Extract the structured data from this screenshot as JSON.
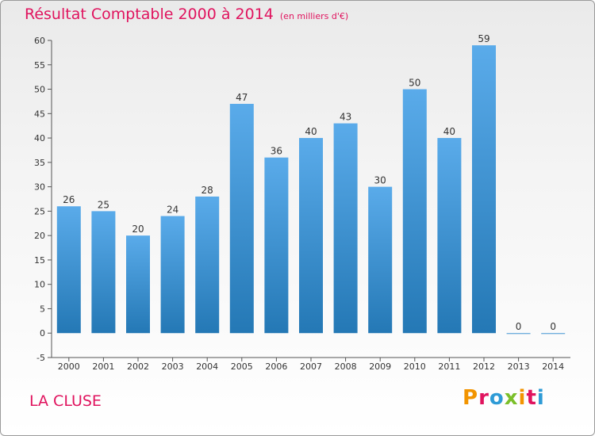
{
  "header": {
    "title": "Résultat Comptable 2000 à 2014",
    "unit": "(en milliers d'€)"
  },
  "footer": {
    "commune": "LA CLUSE",
    "logo_text": "Proxiti"
  },
  "colors": {
    "title": "#e0135e",
    "bar_top": "#5aabea",
    "bar_bottom": "#2478b5",
    "logo": [
      "#f29400",
      "#e0135e",
      "#2e9bd6",
      "#7bbf2a",
      "#f29400",
      "#e0135e",
      "#2e9bd6"
    ]
  },
  "chart_data": {
    "type": "bar",
    "title": "Résultat Comptable 2000 à 2014",
    "subtitle": "(en milliers d'€)",
    "xlabel": "",
    "ylabel": "",
    "categories": [
      "2000",
      "2001",
      "2002",
      "2003",
      "2004",
      "2005",
      "2006",
      "2007",
      "2008",
      "2009",
      "2010",
      "2011",
      "2012",
      "2013",
      "2014"
    ],
    "values": [
      26,
      25,
      20,
      24,
      28,
      47,
      36,
      40,
      43,
      30,
      50,
      40,
      59,
      0,
      0
    ],
    "ylim": [
      -5,
      60
    ],
    "yticks": [
      -5,
      0,
      5,
      10,
      15,
      20,
      25,
      30,
      35,
      40,
      45,
      50,
      55,
      60
    ],
    "grid": false,
    "legend": "none"
  }
}
